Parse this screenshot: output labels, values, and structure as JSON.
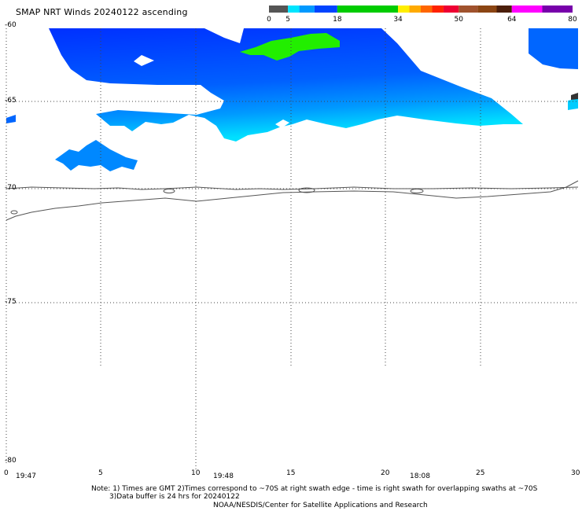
{
  "title": "SMAP NRT Winds 20240122 ascending",
  "colorbar": {
    "labels": [
      "0",
      "5",
      "18",
      "34",
      "50",
      "64",
      "80"
    ],
    "segments": [
      {
        "color": "#555555",
        "from": 0,
        "to": 5
      },
      {
        "color": "#00e5ff",
        "from": 5,
        "to": 8
      },
      {
        "color": "#0099ff",
        "from": 8,
        "to": 12
      },
      {
        "color": "#0044ff",
        "from": 12,
        "to": 18
      },
      {
        "color": "#00cc00",
        "from": 18,
        "to": 34
      },
      {
        "color": "#ffee00",
        "from": 34,
        "to": 37
      },
      {
        "color": "#ffaa00",
        "from": 37,
        "to": 40
      },
      {
        "color": "#ff6600",
        "from": 40,
        "to": 43
      },
      {
        "color": "#ff2200",
        "from": 43,
        "to": 46
      },
      {
        "color": "#ee0033",
        "from": 46,
        "to": 50
      },
      {
        "color": "#a0522d",
        "from": 50,
        "to": 55
      },
      {
        "color": "#8b4513",
        "from": 55,
        "to": 60
      },
      {
        "color": "#4b1e0a",
        "from": 60,
        "to": 64
      },
      {
        "color": "#ff00ff",
        "from": 64,
        "to": 72
      },
      {
        "color": "#7700aa",
        "from": 72,
        "to": 80
      }
    ]
  },
  "lat_labels": [
    "-60",
    "-65",
    "-70",
    "-75",
    "-80"
  ],
  "lon_labels": [
    "0",
    "5",
    "10",
    "15",
    "20",
    "25",
    "30"
  ],
  "times": [
    "19:47",
    "19:48",
    "18:08"
  ],
  "notes": {
    "line1": "Note: 1) Times are GMT 2)Times correspond to ~70S at right swath edge - time is right swath for overlapping swaths at ~70S",
    "line2": "3)Data buffer is 24 hrs for 20240122",
    "line3": "NOAA/NESDIS/Center for Satellite Applications and Research"
  }
}
